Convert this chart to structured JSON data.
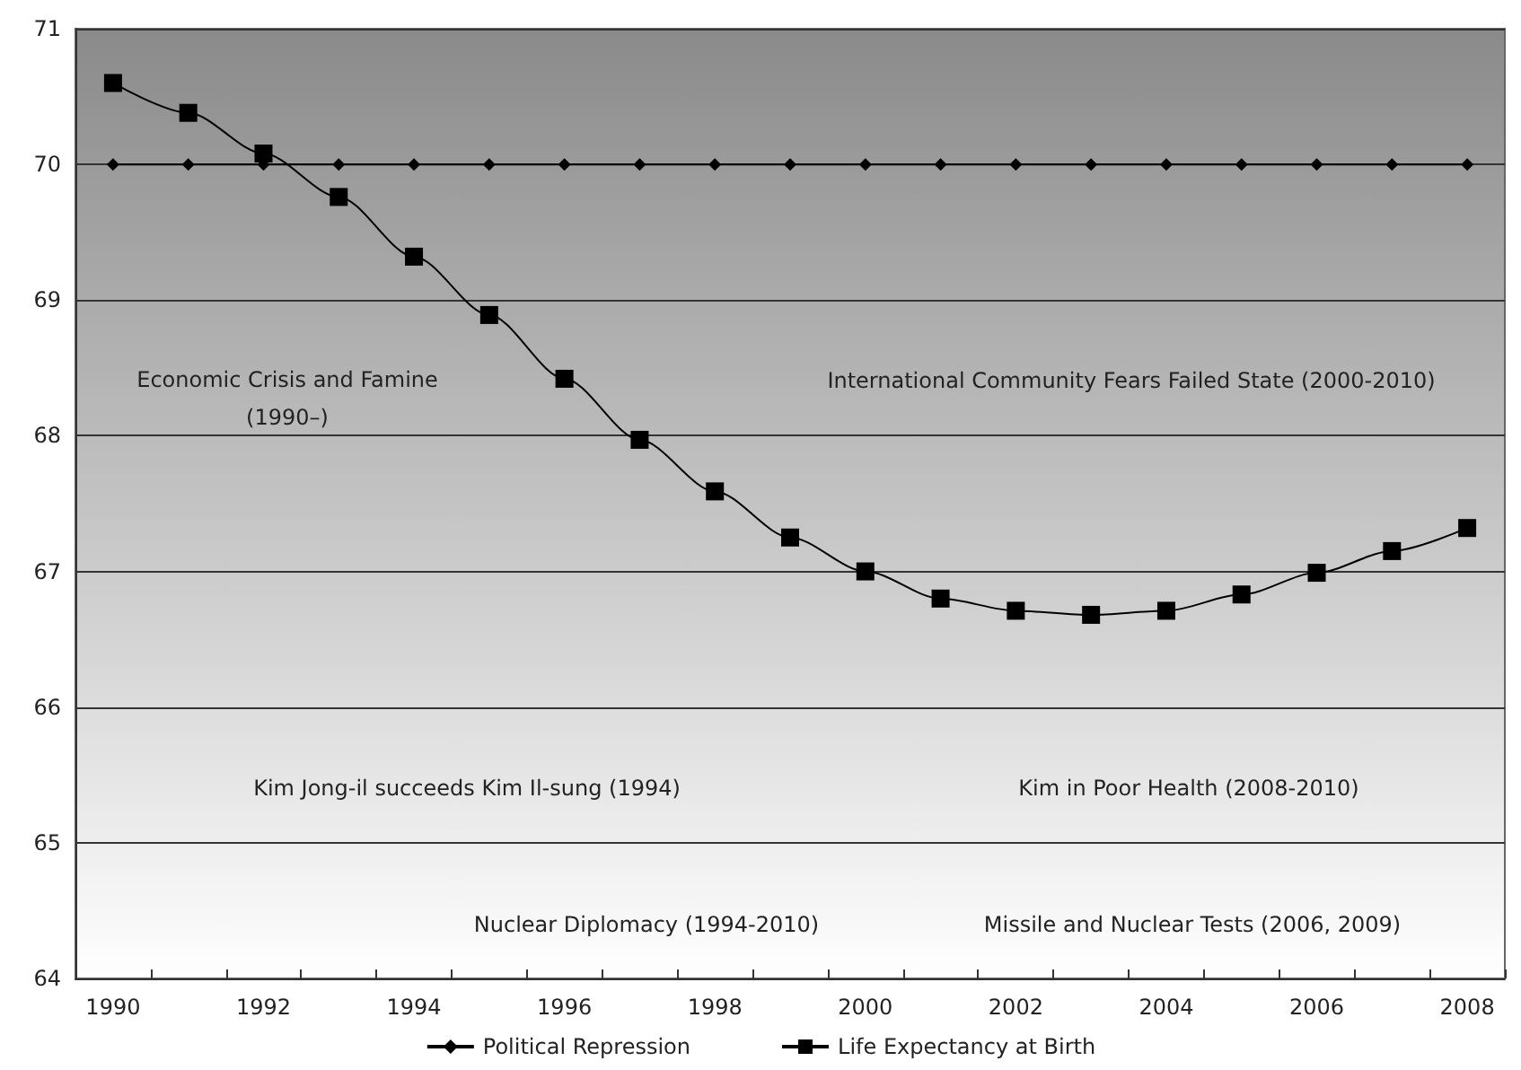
{
  "chart_data": {
    "type": "line",
    "categories": [
      "1990",
      null,
      "1992",
      null,
      "1994",
      null,
      "1996",
      null,
      "1998",
      null,
      "2000",
      null,
      "2002",
      null,
      "2004",
      null,
      "2006",
      null,
      "2008"
    ],
    "series": [
      {
        "name": "Political Repression",
        "color": "#000000",
        "marker": "diamond",
        "values": [
          70,
          70,
          70,
          70,
          70,
          70,
          70,
          70,
          70,
          70,
          70,
          70,
          70,
          70,
          70,
          70,
          70,
          70,
          70
        ]
      },
      {
        "name": "Life Expectancy at Birth",
        "color": "#000000",
        "marker": "square",
        "values": [
          70.6,
          70.38,
          70.08,
          69.76,
          69.32,
          68.89,
          68.42,
          67.97,
          67.59,
          67.25,
          67.0,
          66.8,
          66.71,
          66.68,
          66.71,
          66.83,
          66.99,
          67.15,
          67.32
        ]
      }
    ],
    "ylim": [
      64,
      71
    ],
    "yticks": [
      64,
      65,
      66,
      67,
      68,
      69,
      70,
      71
    ],
    "grid": "y",
    "legend": "bottom",
    "annotations": [
      "Economic Crisis and Famine\n(1990–)",
      "International Community Fears Failed State (2000-2010)",
      "Kim Jong-il succeeds Kim Il-sung (1994)",
      "Kim in Poor Health (2008-2010)",
      "Nuclear Diplomacy (1994-2010)",
      "Missile and Nuclear Tests (2006, 2009)"
    ]
  }
}
